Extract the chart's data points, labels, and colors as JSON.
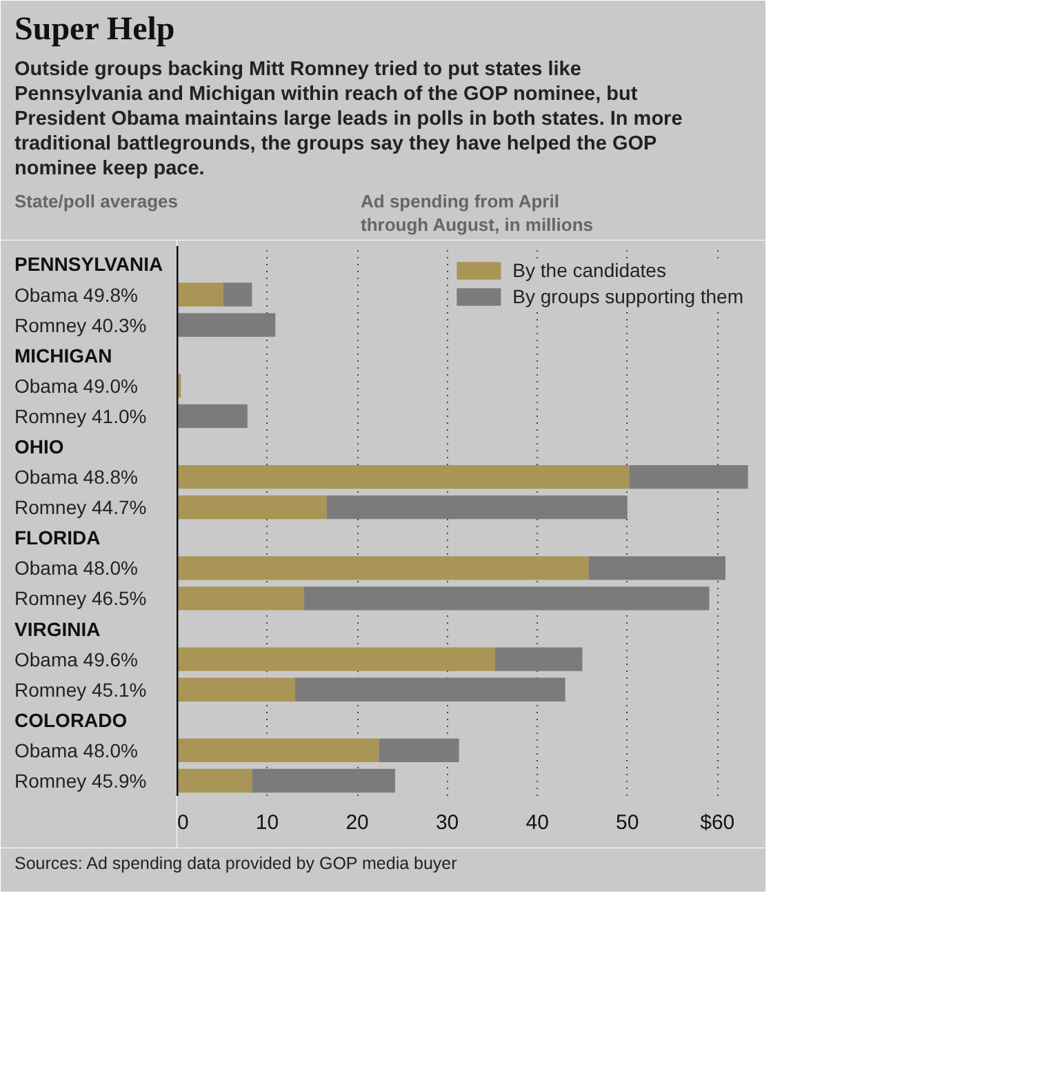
{
  "chart_data": {
    "type": "bar",
    "orientation": "horizontal",
    "stacked": true,
    "title": "Super Help",
    "subtitle": "Outside groups backing Mitt Romney tried to put states like Pennsylvania and Michigan within reach of the GOP nominee, but President Obama maintains large leads in polls in both states. In more traditional battlegrounds, the groups say they have helped the GOP nominee keep pace.",
    "ylabel": "State/poll averages",
    "xlabel": "Ad spending from April through August, in millions",
    "categories": [
      "PENNSYLVANIA",
      "Obama 49.8%",
      "Romney 40.3%",
      "MICHIGAN",
      "Obama 49.0%",
      "Romney 41.0%",
      "OHIO",
      "Obama 48.8%",
      "Romney 44.7%",
      "FLORIDA",
      "Obama 48.0%",
      "Romney 46.5%",
      "VIRGINIA",
      "Obama 49.6%",
      "Romney 45.1%",
      "COLORADO",
      "Obama 48.0%",
      "Romney 45.9%"
    ],
    "series": [
      {
        "name": "By the candidates",
        "color": "#a99555",
        "values": [
          null,
          5.1,
          null,
          null,
          0.4,
          null,
          null,
          50.2,
          16.6,
          null,
          45.7,
          14.1,
          null,
          35.3,
          13.1,
          null,
          22.4,
          8.3
        ]
      },
      {
        "name": "By groups supporting them",
        "color": "#7b7b7b",
        "values": [
          null,
          3.2,
          10.9,
          null,
          null,
          7.8,
          null,
          13.2,
          33.4,
          null,
          15.2,
          45.0,
          null,
          9.7,
          30.0,
          null,
          8.9,
          15.9
        ]
      }
    ],
    "xlim": [
      0,
      64.5
    ],
    "xticks": [
      0,
      10,
      20,
      30,
      40,
      50,
      {
        "value": 60,
        "label": "$60"
      }
    ],
    "grid": "x",
    "legend": "top right",
    "annotations": [
      "Sources: Ad spending data provided by GOP media buyer"
    ]
  }
}
